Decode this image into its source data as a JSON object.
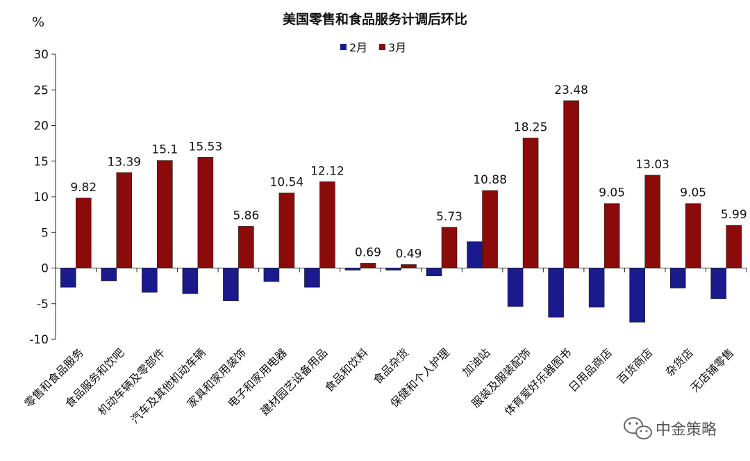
{
  "chart_data": {
    "type": "bar",
    "title": "美国零售和食品服务计调后环比",
    "ylabel": "%",
    "ylim": [
      -10,
      30
    ],
    "yticks": [
      -10,
      -5,
      0,
      5,
      10,
      15,
      20,
      25,
      30
    ],
    "grid": false,
    "legend_position": "top-center",
    "categories": [
      "零售和食品服务",
      "食品服务和饮吧",
      "机动车辆及零部件",
      "汽车及其他机动车辆",
      "家具和家用装饰",
      "电子和家用电器",
      "建材园艺设备用品",
      "食品和饮料",
      "食品杂货",
      "保健和个人护理",
      "加油站",
      "服装及服装配饰",
      "体育爱好乐器图书",
      "日用品商店",
      "百货商店",
      "杂货店",
      "无店铺零售"
    ],
    "series": [
      {
        "name": "2月",
        "color": "#1a1a8c",
        "values": [
          -2.7,
          -1.8,
          -3.4,
          -3.6,
          -4.6,
          -1.9,
          -2.7,
          -0.3,
          -0.3,
          -1.1,
          3.7,
          -5.4,
          -6.9,
          -5.5,
          -7.6,
          -2.8,
          -4.3
        ],
        "show_labels": false
      },
      {
        "name": "3月",
        "color": "#8b0a0a",
        "values": [
          9.82,
          13.39,
          15.1,
          15.53,
          5.86,
          10.54,
          12.12,
          0.69,
          0.49,
          5.73,
          10.88,
          18.25,
          23.48,
          9.05,
          13.03,
          9.05,
          5.99
        ],
        "labels": [
          "9.82",
          "13.39",
          "15.1",
          "15.53",
          "5.86",
          "10.54",
          "12.12",
          "0.69",
          "0.49",
          "5.73",
          "10.88",
          "18.25",
          "23.48",
          "9.05",
          "13.03",
          "9.05",
          "5.99"
        ],
        "show_labels": true
      }
    ]
  },
  "watermark": {
    "text": "中金策略",
    "icon": "wechat-icon"
  }
}
